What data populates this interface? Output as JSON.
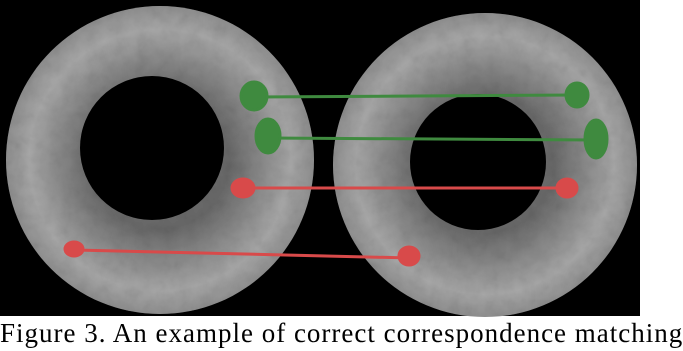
{
  "caption": "Figure 3. An example of correct correspondence matching"
}
